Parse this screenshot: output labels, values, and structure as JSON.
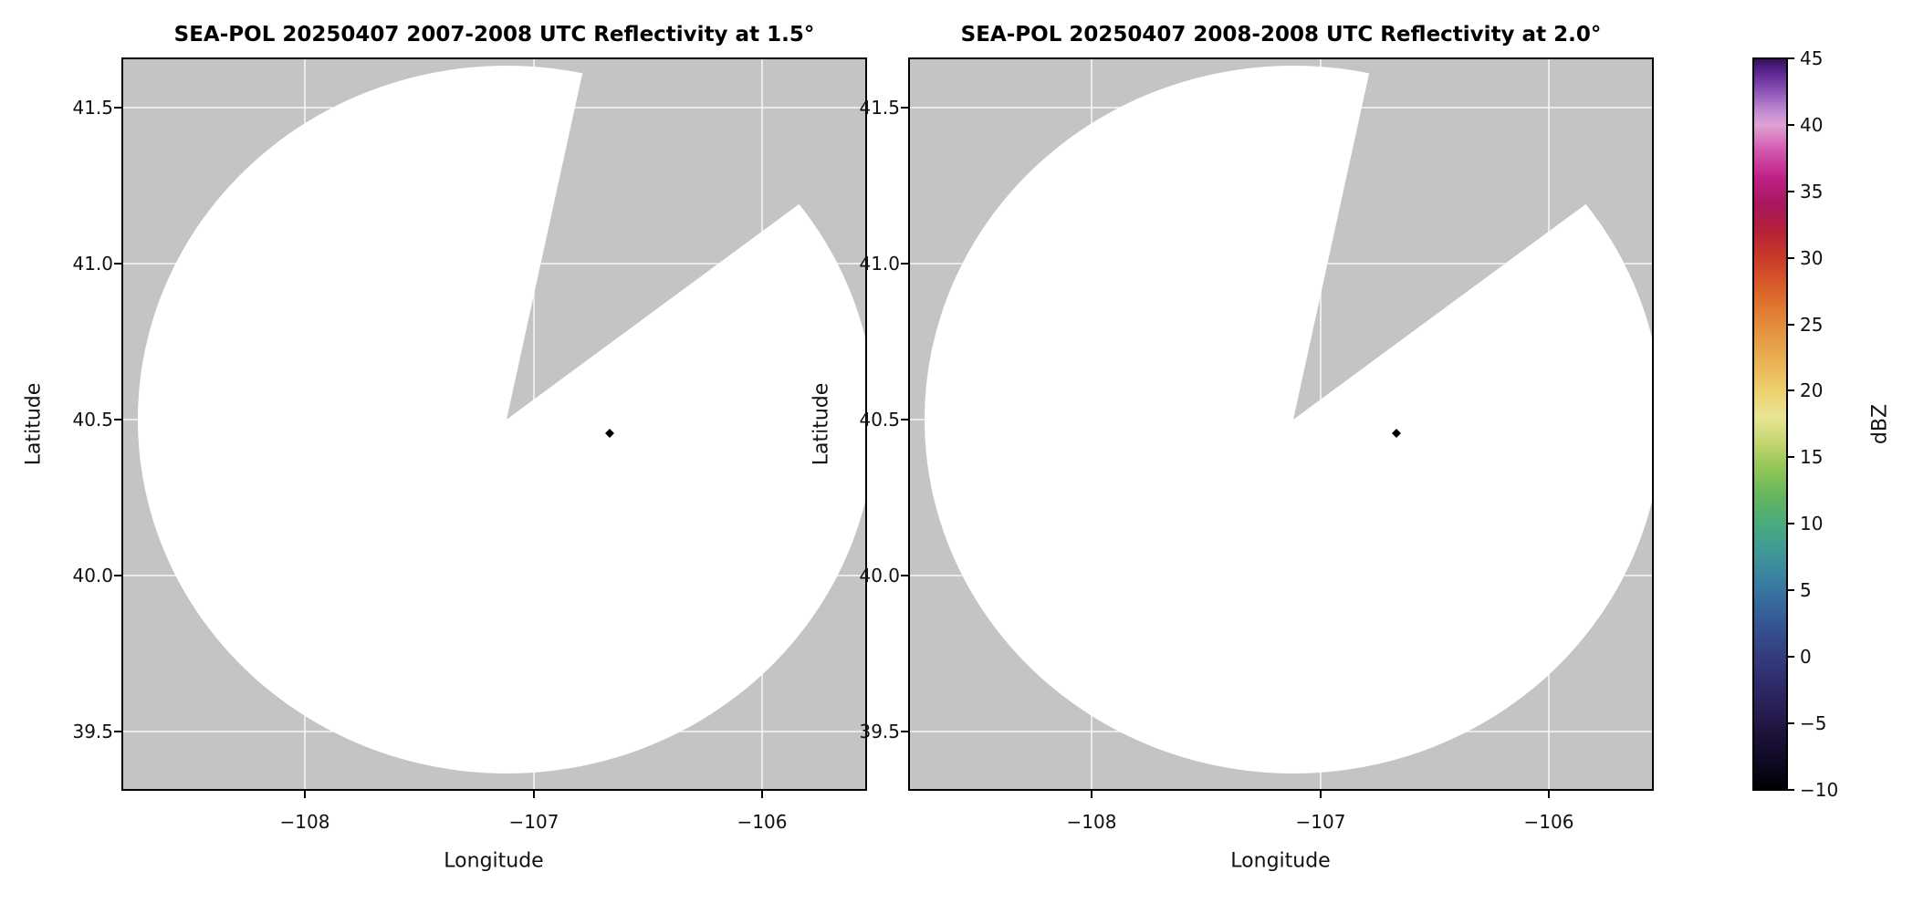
{
  "figure": {
    "background": "#ffffff",
    "panel_bg": "#c4c4c4",
    "coverage_fill": "#ffffff",
    "grid_color": "#ffffff",
    "frame_color": "#000000",
    "text_color": "#111111",
    "echo_color": "#000000"
  },
  "chart_data": [
    {
      "type": "radar_ppi",
      "title": "SEA-POL 20250407 2007-2008 UTC Reflectivity at 1.5°",
      "radar_name": "SEA-POL",
      "date": "20250407",
      "time_utc": "2007-2008",
      "elevation_deg": 1.5,
      "xlabel": "Longitude",
      "ylabel": "Latitude",
      "xlim": [
        -108.8,
        -105.54
      ],
      "ylim": [
        39.31,
        41.66
      ],
      "xticks": [
        -108,
        -107,
        -106
      ],
      "xtick_labels": [
        "−108",
        "−107",
        "−106"
      ],
      "yticks": [
        39.5,
        40.0,
        40.5,
        41.0,
        41.5
      ],
      "ytick_labels": [
        "39.5",
        "40.0",
        "40.5",
        "41.0",
        "41.5"
      ],
      "grid": true,
      "radar_coverage": {
        "center_lon": -107.12,
        "center_lat": 40.5,
        "radius_deg_lon": 1.61,
        "radius_deg_lat": 1.13,
        "missing_sector_azimuth_deg": [
          12,
          54
        ]
      },
      "echoes": [
        {
          "lon": -106.67,
          "lat": 40.46,
          "dbz_approx": -10
        }
      ]
    },
    {
      "type": "radar_ppi",
      "title": "SEA-POL 20250407 2008-2008 UTC Reflectivity at 2.0°",
      "radar_name": "SEA-POL",
      "date": "20250407",
      "time_utc": "2008-2008",
      "elevation_deg": 2.0,
      "xlabel": "Longitude",
      "ylabel": "Latitude",
      "xlim": [
        -108.8,
        -105.54
      ],
      "ylim": [
        39.31,
        41.66
      ],
      "xticks": [
        -108,
        -107,
        -106
      ],
      "xtick_labels": [
        "−108",
        "−107",
        "−106"
      ],
      "yticks": [
        39.5,
        40.0,
        40.5,
        41.0,
        41.5
      ],
      "ytick_labels": [
        "39.5",
        "40.0",
        "40.5",
        "41.0",
        "41.5"
      ],
      "grid": true,
      "radar_coverage": {
        "center_lon": -107.12,
        "center_lat": 40.5,
        "radius_deg_lon": 1.61,
        "radius_deg_lat": 1.13,
        "missing_sector_azimuth_deg": [
          12,
          54
        ]
      },
      "echoes": [
        {
          "lon": -106.67,
          "lat": 40.46,
          "dbz_approx": -10
        }
      ]
    }
  ],
  "colorbar": {
    "label": "dBZ",
    "min": -10,
    "max": 45,
    "ticks": [
      45,
      40,
      35,
      30,
      25,
      20,
      15,
      10,
      5,
      0,
      -5,
      -10
    ],
    "tick_labels": [
      "45",
      "40",
      "35",
      "30",
      "25",
      "20",
      "15",
      "10",
      "5",
      "0",
      "−5",
      "−10"
    ],
    "stops": [
      {
        "value": -10,
        "color": "#000000"
      },
      {
        "value": -8,
        "color": "#0e0921"
      },
      {
        "value": -6,
        "color": "#1c1139"
      },
      {
        "value": -4,
        "color": "#281d53"
      },
      {
        "value": -2,
        "color": "#2f2b69"
      },
      {
        "value": 0,
        "color": "#333c7e"
      },
      {
        "value": 2,
        "color": "#34518f"
      },
      {
        "value": 4,
        "color": "#37689d"
      },
      {
        "value": 6,
        "color": "#3b82a1"
      },
      {
        "value": 8,
        "color": "#3f9a96"
      },
      {
        "value": 10,
        "color": "#49ab7d"
      },
      {
        "value": 12,
        "color": "#62b560"
      },
      {
        "value": 14,
        "color": "#8ec455"
      },
      {
        "value": 16,
        "color": "#c0d56e"
      },
      {
        "value": 18,
        "color": "#e9e593"
      },
      {
        "value": 20,
        "color": "#edd06e"
      },
      {
        "value": 22,
        "color": "#eab455"
      },
      {
        "value": 24,
        "color": "#e69942"
      },
      {
        "value": 26,
        "color": "#e17c33"
      },
      {
        "value": 28,
        "color": "#d95b2a"
      },
      {
        "value": 30,
        "color": "#ca3a28"
      },
      {
        "value": 32,
        "color": "#b62139"
      },
      {
        "value": 34,
        "color": "#a9175d"
      },
      {
        "value": 36,
        "color": "#be2086"
      },
      {
        "value": 38,
        "color": "#d355ae"
      },
      {
        "value": 40,
        "color": "#dfa2d3"
      },
      {
        "value": 41,
        "color": "#c18cd3"
      },
      {
        "value": 42.5,
        "color": "#8e56b8"
      },
      {
        "value": 44,
        "color": "#5b2490"
      },
      {
        "value": 45,
        "color": "#330d58"
      }
    ]
  }
}
